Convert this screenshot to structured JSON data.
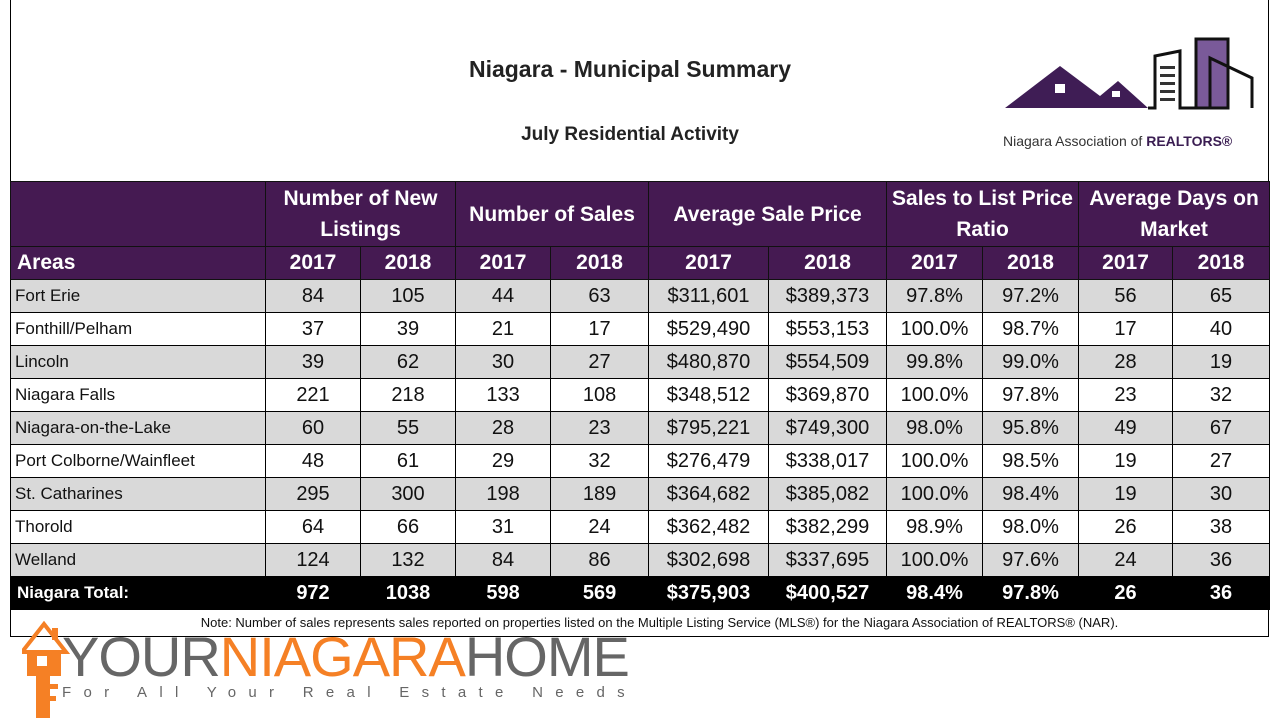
{
  "header": {
    "title": "Niagara - Municipal Summary",
    "subtitle": "July Residential Activity",
    "logo_text_prefix": "Niagara Association of ",
    "logo_text_brand": "REALTORS®"
  },
  "table": {
    "area_header": "Areas",
    "groups": [
      "Number of New Listings",
      "Number of Sales",
      "Average Sale Price",
      "Sales to List Price Ratio",
      "Average Days on Market"
    ],
    "years": [
      "2017",
      "2018"
    ],
    "rows": [
      [
        "Fort Erie",
        "84",
        "105",
        "44",
        "63",
        "$311,601",
        "$389,373",
        "97.8%",
        "97.2%",
        "56",
        "65"
      ],
      [
        "Fonthill/Pelham",
        "37",
        "39",
        "21",
        "17",
        "$529,490",
        "$553,153",
        "100.0%",
        "98.7%",
        "17",
        "40"
      ],
      [
        "Lincoln",
        "39",
        "62",
        "30",
        "27",
        "$480,870",
        "$554,509",
        "99.8%",
        "99.0%",
        "28",
        "19"
      ],
      [
        "Niagara Falls",
        "221",
        "218",
        "133",
        "108",
        "$348,512",
        "$369,870",
        "100.0%",
        "97.8%",
        "23",
        "32"
      ],
      [
        "Niagara-on-the-Lake",
        "60",
        "55",
        "28",
        "23",
        "$795,221",
        "$749,300",
        "98.0%",
        "95.8%",
        "49",
        "67"
      ],
      [
        "Port Colborne/Wainfleet",
        "48",
        "61",
        "29",
        "32",
        "$276,479",
        "$338,017",
        "100.0%",
        "98.5%",
        "19",
        "27"
      ],
      [
        "St. Catharines",
        "295",
        "300",
        "198",
        "189",
        "$364,682",
        "$385,082",
        "100.0%",
        "98.4%",
        "19",
        "30"
      ],
      [
        "Thorold",
        "64",
        "66",
        "31",
        "24",
        "$362,482",
        "$382,299",
        "98.9%",
        "98.0%",
        "26",
        "38"
      ],
      [
        "Welland",
        "124",
        "132",
        "84",
        "86",
        "$302,698",
        "$337,695",
        "100.0%",
        "97.6%",
        "24",
        "36"
      ]
    ],
    "total": [
      "Niagara Total:",
      "972",
      "1038",
      "598",
      "569",
      "$375,903",
      "$400,527",
      "98.4%",
      "97.8%",
      "26",
      "36"
    ]
  },
  "note": "Note: Number of sales represents sales reported on properties listed on the Multiple Listing Service (MLS®) for the Niagara Association of REALTORS® (NAR).",
  "brand": {
    "part1": "YOUR",
    "part2": "NIAGARA",
    "part3": "HOME",
    "tagline": "For All Your Real Estate Needs"
  },
  "colors": {
    "header_purple": "#451a52",
    "row_gray": "#d9d9d9",
    "brand_orange": "#f58025",
    "brand_gray": "#666666"
  }
}
